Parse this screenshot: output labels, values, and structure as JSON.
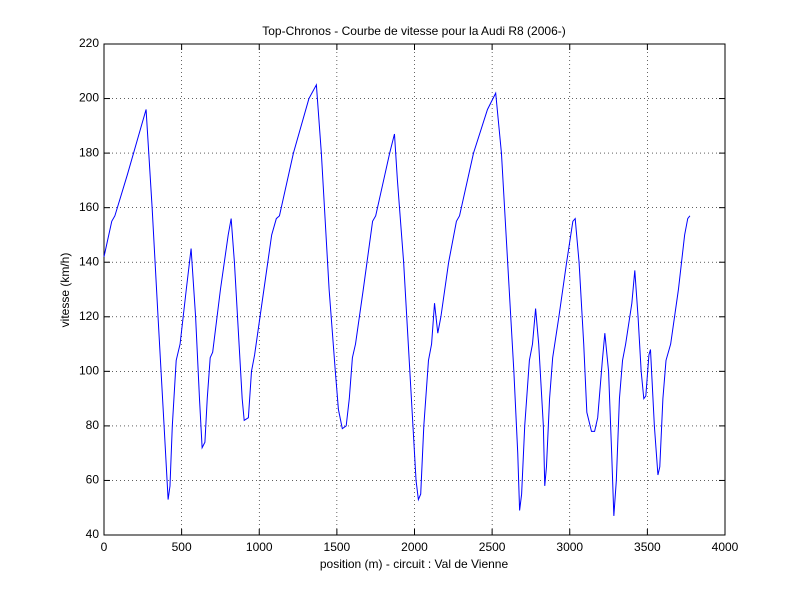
{
  "chart_data": {
    "type": "line",
    "title": "Top-Chronos - Courbe de vitesse pour la Audi R8 (2006-)",
    "xlabel": "position (m) - circuit : Val de Vienne",
    "ylabel": "vitesse (km/h)",
    "x": [
      0,
      50,
      70,
      150,
      271,
      310,
      348,
      387,
      413,
      425,
      440,
      465,
      490,
      530,
      561,
      590,
      615,
      632,
      650,
      665,
      684,
      700,
      750,
      800,
      819,
      840,
      870,
      890,
      903,
      930,
      950,
      970,
      1030,
      1080,
      1110,
      1130,
      1220,
      1320,
      1368,
      1400,
      1450,
      1490,
      1510,
      1535,
      1560,
      1580,
      1600,
      1620,
      1670,
      1730,
      1750,
      1840,
      1871,
      1890,
      1930,
      1960,
      1990,
      2010,
      2025,
      2040,
      2060,
      2090,
      2110,
      2129,
      2150,
      2170,
      2220,
      2270,
      2290,
      2380,
      2470,
      2523,
      2560,
      2600,
      2640,
      2665,
      2677,
      2690,
      2710,
      2740,
      2760,
      2780,
      2800,
      2830,
      2839,
      2850,
      2870,
      2890,
      2930,
      2980,
      3020,
      3035,
      3060,
      3090,
      3110,
      3140,
      3160,
      3180,
      3210,
      3226,
      3250,
      3270,
      3284,
      3300,
      3320,
      3340,
      3360,
      3400,
      3419,
      3440,
      3460,
      3477,
      3490,
      3510,
      3520,
      3545,
      3568,
      3580,
      3600,
      3620,
      3650,
      3700,
      3740,
      3760,
      3774
    ],
    "values": [
      142,
      155,
      157,
      172,
      196,
      160,
      120,
      80,
      53,
      58,
      80,
      104,
      110,
      130,
      145,
      120,
      90,
      72,
      74,
      90,
      105,
      107,
      130,
      150,
      156,
      140,
      110,
      90,
      82,
      83,
      100,
      106,
      130,
      150,
      156,
      157,
      180,
      200,
      205,
      180,
      130,
      100,
      86,
      79,
      80,
      90,
      105,
      110,
      130,
      155,
      157,
      180,
      187,
      170,
      140,
      110,
      80,
      60,
      53,
      55,
      80,
      104,
      110,
      125,
      114,
      120,
      140,
      155,
      157,
      180,
      196,
      202,
      180,
      140,
      100,
      70,
      49,
      55,
      80,
      104,
      110,
      123,
      110,
      80,
      58,
      65,
      90,
      105,
      120,
      140,
      155,
      156,
      140,
      110,
      85,
      78,
      78,
      83,
      104,
      114,
      100,
      70,
      47,
      60,
      90,
      104,
      110,
      125,
      137,
      120,
      100,
      90,
      91,
      106,
      108,
      80,
      62,
      65,
      90,
      104,
      110,
      130,
      150,
      156,
      157
    ],
    "color": "#0000ff",
    "xlim": [
      0,
      4000
    ],
    "xticks": [
      0,
      500,
      1000,
      1500,
      2000,
      2500,
      3000,
      3500,
      4000
    ],
    "ylim": [
      40,
      220
    ],
    "yticks": [
      40,
      60,
      80,
      100,
      120,
      140,
      160,
      180,
      200,
      220
    ],
    "grid": true
  }
}
